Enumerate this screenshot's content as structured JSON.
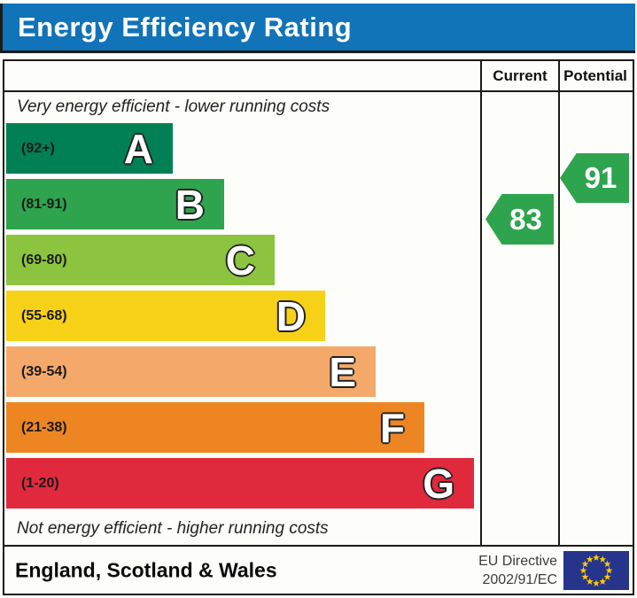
{
  "title": "Energy Efficiency Rating",
  "columns": {
    "current": "Current",
    "potential": "Potential"
  },
  "top_note": "Very energy efficient - lower running costs",
  "bottom_note": "Not energy efficient - higher running costs",
  "bands": [
    {
      "letter": "A",
      "range": "(92+)",
      "color": "#008054"
    },
    {
      "letter": "B",
      "range": "(81-91)",
      "color": "#2ea44e"
    },
    {
      "letter": "C",
      "range": "(69-80)",
      "color": "#8cc43f"
    },
    {
      "letter": "D",
      "range": "(55-68)",
      "color": "#f7d117"
    },
    {
      "letter": "E",
      "range": "(39-54)",
      "color": "#f4a96a"
    },
    {
      "letter": "F",
      "range": "(21-38)",
      "color": "#ee8523"
    },
    {
      "letter": "G",
      "range": "(1-20)",
      "color": "#e1293d"
    }
  ],
  "ratings": {
    "current": {
      "value": "83",
      "color": "#2ea44e"
    },
    "potential": {
      "value": "91",
      "color": "#2ea44e"
    }
  },
  "footer": {
    "region": "England, Scotland & Wales",
    "directive_line1": "EU Directive",
    "directive_line2": "2002/91/EC"
  },
  "colors": {
    "title_bar": "#1173b8",
    "eu_flag_bg": "#26348b",
    "eu_flag_stars": "#ffcc00"
  },
  "chart_data": {
    "type": "bar",
    "title": "Energy Efficiency Rating",
    "categories": [
      "A",
      "B",
      "C",
      "D",
      "E",
      "F",
      "G"
    ],
    "band_ranges": [
      "92+",
      "81-91",
      "69-80",
      "55-68",
      "39-54",
      "21-38",
      "1-20"
    ],
    "band_colors": [
      "#008054",
      "#2ea44e",
      "#8cc43f",
      "#f7d117",
      "#f4a96a",
      "#ee8523",
      "#e1293d"
    ],
    "series": [
      {
        "name": "Current",
        "values": [
          83
        ]
      },
      {
        "name": "Potential",
        "values": [
          91
        ]
      }
    ],
    "annotations": [
      "Very energy efficient - lower running costs",
      "Not energy efficient - higher running costs"
    ],
    "footer": "England, Scotland & Wales — EU Directive 2002/91/EC",
    "value_scale": [
      1,
      100
    ],
    "legend_position": "top-right-columns"
  }
}
